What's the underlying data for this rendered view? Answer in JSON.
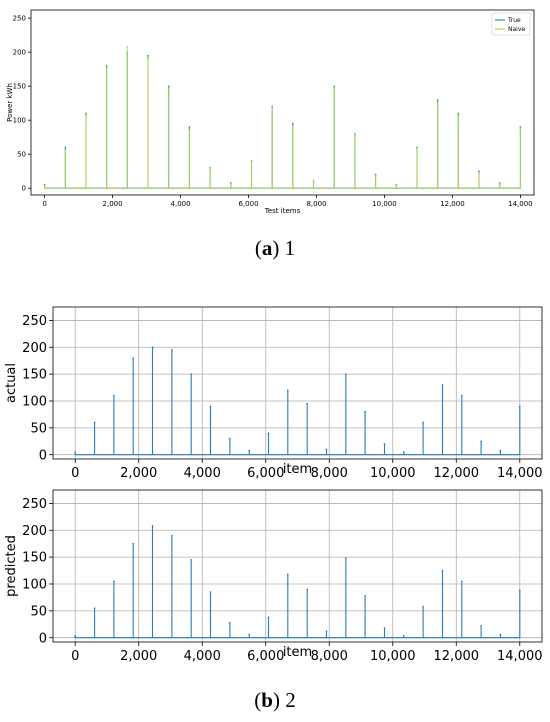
{
  "captions": [
    {
      "letter": "a",
      "text": "1"
    },
    {
      "letter": "b",
      "text": "2"
    }
  ],
  "chart_data": [
    {
      "type": "line",
      "xlabel": "Test items",
      "ylabel": "Power kWh",
      "xlim": [
        -400,
        14400
      ],
      "ylim": [
        -10,
        262
      ],
      "xticks": [
        0,
        2000,
        4000,
        6000,
        8000,
        10000,
        12000,
        14000
      ],
      "xtick_labels": [
        "0",
        "2,000",
        "4,000",
        "6,000",
        "8,000",
        "10,000",
        "12,000",
        "14,000"
      ],
      "yticks": [
        0,
        50,
        100,
        150,
        200,
        250
      ],
      "grid": false,
      "legend": "top-right",
      "series": [
        {
          "name": "True",
          "color": "#2a9f8a",
          "values": [
            5,
            60,
            110,
            180,
            200,
            195,
            150,
            90,
            30,
            8,
            40,
            120,
            95,
            10,
            150,
            80,
            20,
            5,
            60,
            130,
            110,
            25,
            8,
            90
          ]
        },
        {
          "name": "Naive",
          "color": "#b9d84a",
          "values": [
            3,
            55,
            105,
            175,
            208,
            190,
            145,
            85,
            28,
            6,
            38,
            118,
            90,
            12,
            148,
            78,
            18,
            4,
            58,
            125,
            105,
            22,
            6,
            88
          ]
        }
      ]
    },
    {
      "type": "line",
      "xlabel": "item",
      "ylabel": "actual",
      "xlim": [
        -700,
        14700
      ],
      "ylim": [
        -8,
        275
      ],
      "xticks": [
        0,
        2000,
        4000,
        6000,
        8000,
        10000,
        12000,
        14000
      ],
      "xtick_labels": [
        "0",
        "2,000",
        "4,000",
        "6,000",
        "8,000",
        "10,000",
        "12,000",
        "14,000"
      ],
      "yticks": [
        0,
        50,
        100,
        150,
        200,
        250
      ],
      "grid": true,
      "series": [
        {
          "name": "",
          "color": "#1f77b4",
          "values": [
            5,
            60,
            110,
            180,
            200,
            195,
            150,
            90,
            30,
            8,
            40,
            120,
            95,
            10,
            150,
            80,
            20,
            5,
            60,
            130,
            110,
            25,
            8,
            90
          ]
        }
      ]
    },
    {
      "type": "line",
      "xlabel": "item",
      "ylabel": "predicted",
      "xlim": [
        -700,
        14700
      ],
      "ylim": [
        -8,
        275
      ],
      "xticks": [
        0,
        2000,
        4000,
        6000,
        8000,
        10000,
        12000,
        14000
      ],
      "xtick_labels": [
        "0",
        "2,000",
        "4,000",
        "6,000",
        "8,000",
        "10,000",
        "12,000",
        "14,000"
      ],
      "yticks": [
        0,
        50,
        100,
        150,
        200,
        250
      ],
      "grid": true,
      "series": [
        {
          "name": "",
          "color": "#1f77b4",
          "values": [
            3,
            55,
            105,
            175,
            208,
            190,
            145,
            85,
            28,
            6,
            38,
            118,
            90,
            12,
            148,
            78,
            18,
            4,
            58,
            125,
            105,
            22,
            6,
            88
          ]
        }
      ]
    }
  ]
}
